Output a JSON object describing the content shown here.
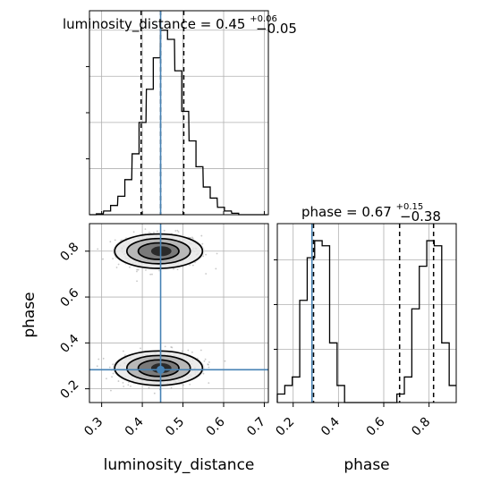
{
  "chart_data": {
    "type": "corner",
    "parameters": [
      "luminosity_distance",
      "phase"
    ],
    "truths": {
      "luminosity_distance": 0.445,
      "phase": 0.283
    },
    "titles": [
      {
        "param": "luminosity_distance",
        "median": "0.45",
        "plus": "+0.06",
        "minus": "−0.05"
      },
      {
        "param": "phase",
        "median": "0.67",
        "plus": "+0.15",
        "minus": "−0.38"
      }
    ],
    "panels": {
      "hist_luminosity_distance": {
        "type": "histogram",
        "xlim": [
          0.27,
          0.71
        ],
        "ylim": [
          0,
          1.05
        ],
        "quantiles": [
          0.397,
          0.445,
          0.502
        ],
        "x_ticks": [
          0.3,
          0.4,
          0.5,
          0.6,
          0.7
        ],
        "bins": [
          [
            0.27,
            0.0
          ],
          [
            0.287,
            0.005
          ],
          [
            0.305,
            0.02
          ],
          [
            0.322,
            0.05
          ],
          [
            0.34,
            0.1
          ],
          [
            0.357,
            0.19
          ],
          [
            0.375,
            0.33
          ],
          [
            0.392,
            0.5
          ],
          [
            0.41,
            0.68
          ],
          [
            0.427,
            0.85
          ],
          [
            0.445,
            1.0
          ],
          [
            0.462,
            0.95
          ],
          [
            0.48,
            0.78
          ],
          [
            0.497,
            0.56
          ],
          [
            0.515,
            0.4
          ],
          [
            0.532,
            0.26
          ],
          [
            0.55,
            0.15
          ],
          [
            0.567,
            0.09
          ],
          [
            0.585,
            0.04
          ],
          [
            0.602,
            0.02
          ],
          [
            0.62,
            0.008
          ],
          [
            0.637,
            0.0
          ],
          [
            0.655,
            0.0
          ],
          [
            0.672,
            0.0
          ],
          [
            0.69,
            0.0
          ]
        ]
      },
      "hist_phase": {
        "type": "histogram",
        "xlim": [
          0.13,
          0.92
        ],
        "ylim": [
          0,
          1.05
        ],
        "quantiles": [
          0.29,
          0.67,
          0.82
        ],
        "x_ticks": [
          0.2,
          0.4,
          0.6,
          0.8
        ],
        "x_tick_labels": [
          "0.2",
          "0.4",
          "0.6",
          "0.8"
        ],
        "bins": [
          [
            0.13,
            0.05
          ],
          [
            0.163,
            0.1
          ],
          [
            0.196,
            0.15
          ],
          [
            0.229,
            0.6
          ],
          [
            0.262,
            0.85
          ],
          [
            0.295,
            0.95
          ],
          [
            0.328,
            0.92
          ],
          [
            0.361,
            0.35
          ],
          [
            0.394,
            0.1
          ],
          [
            0.427,
            0.0
          ],
          [
            0.46,
            0.0
          ],
          [
            0.493,
            0.0
          ],
          [
            0.526,
            0.0
          ],
          [
            0.559,
            0.0
          ],
          [
            0.592,
            0.0
          ],
          [
            0.625,
            0.0
          ],
          [
            0.658,
            0.05
          ],
          [
            0.691,
            0.15
          ],
          [
            0.724,
            0.55
          ],
          [
            0.757,
            0.8
          ],
          [
            0.79,
            0.95
          ],
          [
            0.823,
            0.92
          ],
          [
            0.856,
            0.35
          ],
          [
            0.889,
            0.1
          ]
        ]
      },
      "scatter_phase_vs_luminosity_distance": {
        "type": "scatter-density",
        "xlim": [
          0.27,
          0.71
        ],
        "ylim": [
          0.14,
          0.92
        ],
        "x_ticks": [
          0.3,
          0.4,
          0.5,
          0.6,
          0.7
        ],
        "x_tick_labels": [
          "0.3",
          "0.4",
          "0.5",
          "0.6",
          "0.7"
        ],
        "y_ticks": [
          0.2,
          0.4,
          0.6,
          0.8
        ],
        "y_tick_labels": [
          "0.2",
          "0.4",
          "0.6",
          "0.8"
        ],
        "modes": [
          {
            "x": 0.44,
            "y": 0.8,
            "sx": 0.045,
            "sy": 0.035
          },
          {
            "x": 0.44,
            "y": 0.29,
            "sx": 0.045,
            "sy": 0.035
          }
        ],
        "contour_levels": [
          {
            "rx": 0.108,
            "ry": 0.075
          },
          {
            "rx": 0.078,
            "ry": 0.055
          },
          {
            "rx": 0.05,
            "ry": 0.036
          }
        ],
        "xlabel": "luminosity_distance",
        "ylabel": "phase"
      }
    },
    "xlabel_bottom_right": "phase"
  },
  "colors": {
    "truth": "#4682b4",
    "grid": "#b0b0b0",
    "density_dark": "#000000",
    "density_light": "#d0d0d0"
  }
}
